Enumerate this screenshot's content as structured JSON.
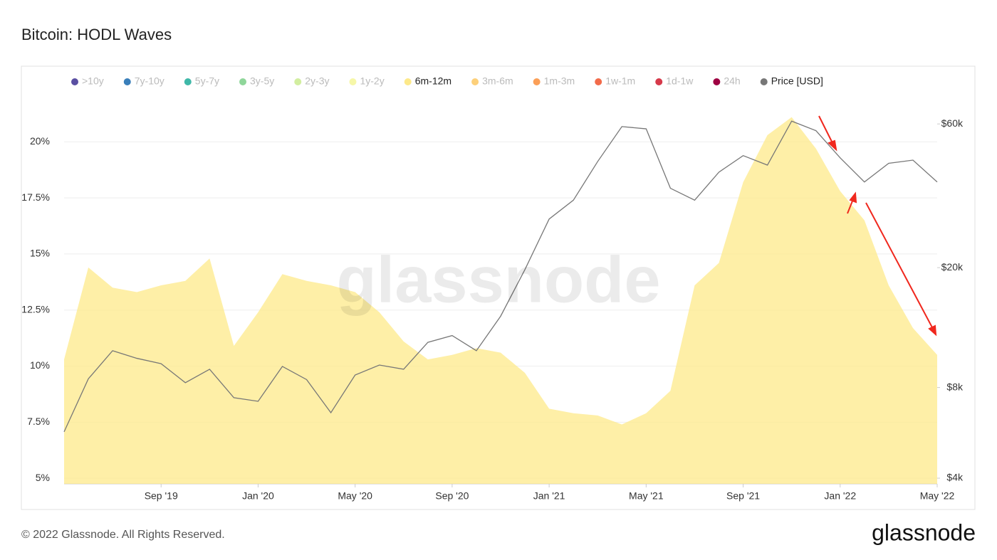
{
  "chart_data": {
    "type": "area",
    "title": "Bitcoin: HODL Waves",
    "watermark": "glassnode",
    "x": [
      "2019-05",
      "2019-06",
      "2019-07",
      "2019-08",
      "2019-09",
      "2019-10",
      "2019-11",
      "2019-12",
      "2020-01",
      "2020-02",
      "2020-03",
      "2020-04",
      "2020-05",
      "2020-06",
      "2020-07",
      "2020-08",
      "2020-09",
      "2020-10",
      "2020-11",
      "2020-12",
      "2021-01",
      "2021-02",
      "2021-03",
      "2021-04",
      "2021-05",
      "2021-06",
      "2021-07",
      "2021-08",
      "2021-09",
      "2021-10",
      "2021-11",
      "2021-12",
      "2022-01",
      "2022-02",
      "2022-03",
      "2022-04",
      "2022-05"
    ],
    "xlim": [
      "2019-05",
      "2022-05"
    ],
    "xticks": [
      {
        "value": "2019-09",
        "label": "Sep '19"
      },
      {
        "value": "2020-01",
        "label": "Jan '20"
      },
      {
        "value": "2020-05",
        "label": "May '20"
      },
      {
        "value": "2020-09",
        "label": "Sep '20"
      },
      {
        "value": "2021-01",
        "label": "Jan '21"
      },
      {
        "value": "2021-05",
        "label": "May '21"
      },
      {
        "value": "2021-09",
        "label": "Sep '21"
      },
      {
        "value": "2022-01",
        "label": "Jan '22"
      },
      {
        "value": "2022-05",
        "label": "May '22"
      }
    ],
    "ylim": [
      4.75,
      22.2
    ],
    "yticks": [
      {
        "value": 5,
        "label": "5%"
      },
      {
        "value": 7.5,
        "label": "7.5%"
      },
      {
        "value": 10,
        "label": "10%"
      },
      {
        "value": 12.5,
        "label": "12.5%"
      },
      {
        "value": 15,
        "label": "15%"
      },
      {
        "value": 17.5,
        "label": "17.5%"
      },
      {
        "value": 20,
        "label": "20%"
      }
    ],
    "y2lim": [
      3830,
      76300
    ],
    "y2scale": "log",
    "y2ticks": [
      {
        "value": 4000,
        "label": "$4k"
      },
      {
        "value": 8000,
        "label": "$8k"
      },
      {
        "value": 20000,
        "label": "$20k"
      },
      {
        "value": 60000,
        "label": "$60k"
      }
    ],
    "grid": true,
    "legend": "top",
    "series": [
      {
        "name": ">10y",
        "color": "#5a4fa2",
        "visible": false
      },
      {
        "name": "7y-10y",
        "color": "#3a7fba",
        "visible": false
      },
      {
        "name": "5y-7y",
        "color": "#3fb8a8",
        "visible": false
      },
      {
        "name": "3y-5y",
        "color": "#8fd69a",
        "visible": false
      },
      {
        "name": "2y-3y",
        "color": "#d2eea0",
        "visible": false
      },
      {
        "name": "1y-2y",
        "color": "#f6f7a8",
        "visible": false
      },
      {
        "name": "6m-12m",
        "color": "#fde98a",
        "visible": true,
        "values": [
          10.3,
          14.4,
          13.5,
          13.3,
          13.6,
          13.8,
          14.8,
          10.9,
          12.4,
          14.1,
          13.8,
          13.6,
          13.3,
          12.4,
          11.1,
          10.3,
          10.5,
          10.8,
          10.6,
          9.7,
          8.1,
          7.9,
          7.8,
          7.4,
          7.9,
          8.9,
          13.6,
          14.6,
          18.2,
          20.3,
          21.1,
          19.7,
          17.8,
          16.5,
          13.6,
          11.7,
          10.5
        ]
      },
      {
        "name": "3m-6m",
        "color": "#fdd07a",
        "visible": false
      },
      {
        "name": "1m-3m",
        "color": "#fb9f57",
        "visible": false
      },
      {
        "name": "1w-1m",
        "color": "#f26b4a",
        "visible": false
      },
      {
        "name": "1d-1w",
        "color": "#d6394a",
        "visible": false
      },
      {
        "name": "24h",
        "color": "#9e0142",
        "visible": false
      },
      {
        "name": "Price [USD]",
        "color": "#777777",
        "visible": true,
        "axis": "y2",
        "type": "line",
        "values": [
          5700,
          8550,
          10600,
          10000,
          9600,
          8300,
          9200,
          7400,
          7200,
          9400,
          8500,
          6600,
          8800,
          9500,
          9200,
          11300,
          11900,
          10600,
          13800,
          19700,
          29000,
          33500,
          45000,
          58800,
          57800,
          36700,
          33500,
          41500,
          47100,
          43800,
          61300,
          57000,
          46300,
          38500,
          44400,
          45500,
          38500
        ]
      }
    ]
  },
  "footer": {
    "copyright": "© 2022 Glassnode. All Rights Reserved.",
    "brand": "glassnode"
  }
}
